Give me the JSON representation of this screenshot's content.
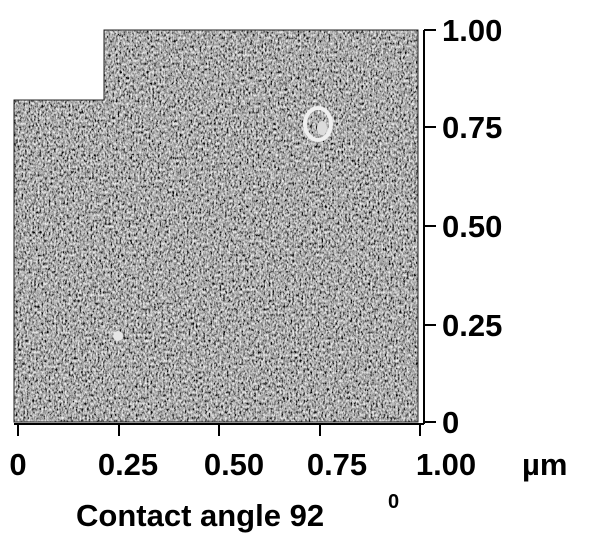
{
  "image": {
    "subject": "surface micrograph",
    "scan_area": "L-shaped (upper-left corner missing)",
    "texture_color": "#6f6f6f",
    "highlight_color": "#e8e8e8",
    "shadow_color": "#1e1e1e",
    "icon": "micrograph-scan"
  },
  "right_axis": {
    "ticks": [
      "1.00",
      "0.75",
      "0.50",
      "0.25",
      "0"
    ]
  },
  "bottom_axis": {
    "ticks": [
      "0",
      "0.25",
      "0.50",
      "0.75",
      "1.00"
    ],
    "unit": "µm"
  },
  "caption": {
    "text": "Contact angle 92",
    "superscript": "0"
  }
}
